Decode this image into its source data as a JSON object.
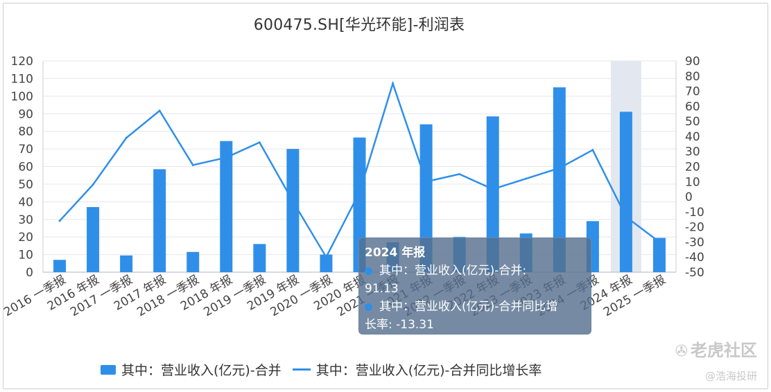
{
  "chart_data": {
    "type": "bar",
    "title": "600475.SH[华光环能]-利润表",
    "categories": [
      "2016 一季报",
      "2016 年报",
      "2017 一季报",
      "2017 年报",
      "2018 一季报",
      "2018 年报",
      "2019 一季报",
      "2019 年报",
      "2020 一季报",
      "2020 年报",
      "2021 一季报",
      "2021 年报",
      "2022 一季报",
      "2022 年报",
      "2023 一季报",
      "2023 年报",
      "2024 一季报",
      "2024 年报",
      "2025 一季报"
    ],
    "series": [
      {
        "name": "其中：营业收入(亿元)-合并",
        "type": "bar",
        "axis": "left",
        "values": [
          7,
          37,
          9.5,
          58.5,
          11.5,
          74.5,
          16,
          70,
          10,
          76.5,
          17,
          84,
          20,
          88.5,
          22,
          105,
          29,
          91.13,
          19.5
        ]
      },
      {
        "name": "其中：营业收入(亿元)-合并同比增长率",
        "type": "line",
        "axis": "right",
        "values": [
          -16,
          8,
          39,
          57,
          21,
          26,
          36,
          -3,
          -40,
          3,
          75,
          10,
          15,
          5,
          12,
          19,
          31,
          -13.31,
          -30
        ]
      }
    ],
    "left_axis": {
      "ylim": [
        0,
        120
      ],
      "ticks": [
        0,
        10,
        20,
        30,
        40,
        50,
        60,
        70,
        80,
        90,
        100,
        110,
        120
      ]
    },
    "right_axis": {
      "ylim": [
        -50,
        90
      ],
      "ticks": [
        "-50",
        "-40",
        "-30",
        "-20",
        "-10",
        "0",
        "10",
        "20",
        "30",
        "40",
        "50",
        "60",
        "70",
        "80",
        "90"
      ]
    },
    "grid": true,
    "legend": "bottom",
    "highlight_index": 17
  },
  "tooltip": {
    "title": "2024 年报",
    "row1_label": "其中：营业收入(亿元)-合并:",
    "row1_value": "91.13",
    "row2_label": "其中：营业收入(亿元)-合并同比增",
    "row2_value": "长率: -13.31"
  },
  "legend": {
    "bar_label": "其中：营业收入(亿元)-合并",
    "line_label": "其中：营业收入(亿元)-合并同比增长率"
  },
  "watermark": {
    "brand": "老虎社区",
    "author": "@浩海投研"
  },
  "colors": {
    "bar": "#2f8fe8",
    "line": "#2f8fe8",
    "grid": "#e4e7ee",
    "highlight": "#e3e8f0"
  }
}
